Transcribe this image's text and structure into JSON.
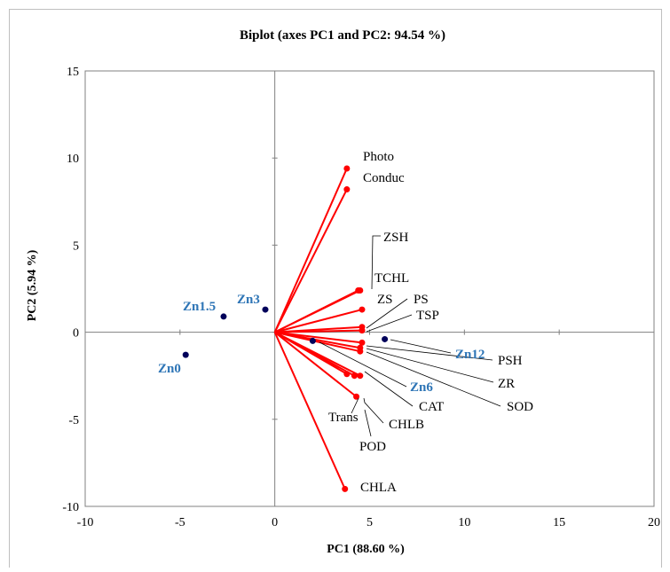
{
  "chart_data": {
    "type": "scatter",
    "subtype": "biplot",
    "title": "Biplot (axes PC1 and PC2: 94.54 %)",
    "xlabel": "PC1 (88.60 %)",
    "ylabel": "PC2 (5.94 %)",
    "xlim": [
      -10,
      20
    ],
    "ylim": [
      -10,
      15
    ],
    "xticks": [
      "-10",
      "-5",
      "0",
      "5",
      "10",
      "15",
      "20"
    ],
    "yticks": [
      "15",
      "10",
      "5",
      "0",
      "-5",
      "-10"
    ],
    "grid": false,
    "colors": {
      "vectors": "#ff0000",
      "observations": "#00005a",
      "observation_labels": "#2e75b6"
    },
    "variables": [
      {
        "name": "Photo",
        "x": 3.8,
        "y": 9.4
      },
      {
        "name": "Conduc",
        "x": 3.8,
        "y": 8.2
      },
      {
        "name": "ZSH",
        "x": 4.5,
        "y": 2.4
      },
      {
        "name": "TCHL",
        "x": 4.4,
        "y": 2.4
      },
      {
        "name": "ZS",
        "x": 4.6,
        "y": 1.3
      },
      {
        "name": "PS",
        "x": 4.6,
        "y": 0.3
      },
      {
        "name": "TSP",
        "x": 4.6,
        "y": 0.1
      },
      {
        "name": "PSH",
        "x": 4.6,
        "y": -0.6
      },
      {
        "name": "ZR",
        "x": 4.5,
        "y": -0.9
      },
      {
        "name": "SOD",
        "x": 4.5,
        "y": -1.1
      },
      {
        "name": "CAT",
        "x": 4.5,
        "y": -2.5
      },
      {
        "name": "CHLB",
        "x": 4.2,
        "y": -2.5
      },
      {
        "name": "Trans",
        "x": 3.8,
        "y": -2.4
      },
      {
        "name": "POD",
        "x": 4.3,
        "y": -3.7
      },
      {
        "name": "CHLA",
        "x": 3.7,
        "y": -9.0
      }
    ],
    "observations": [
      {
        "name": "Zn0",
        "x": -4.7,
        "y": -1.3
      },
      {
        "name": "Zn1.5",
        "x": -2.7,
        "y": 0.9
      },
      {
        "name": "Zn3",
        "x": -0.5,
        "y": 1.3
      },
      {
        "name": "Zn6",
        "x": 2.0,
        "y": -0.5
      },
      {
        "name": "Zn12",
        "x": 5.8,
        "y": -0.4
      }
    ]
  }
}
